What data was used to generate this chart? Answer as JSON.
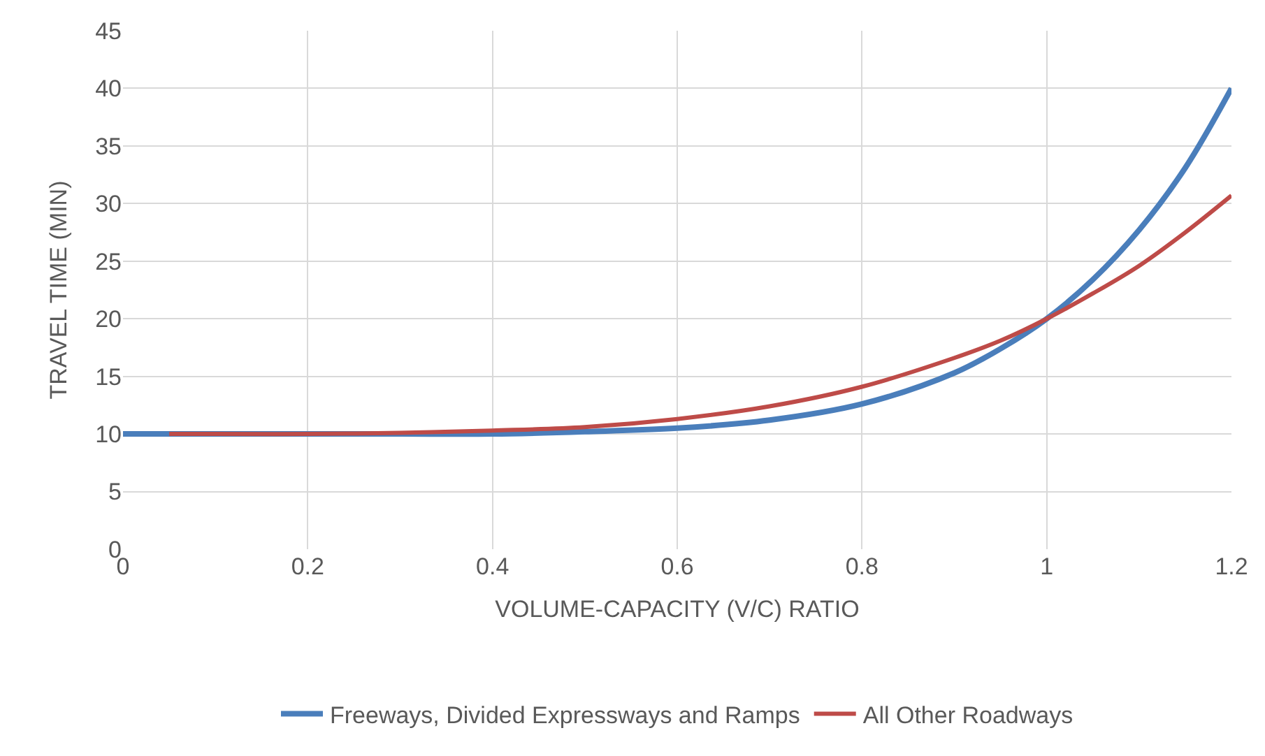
{
  "chart_data": {
    "type": "line",
    "xlabel": "VOLUME-CAPACITY (V/C) RATIO",
    "ylabel": "TRAVEL TIME (MIN)",
    "series": [
      {
        "name": "Freeways, Divided Expressways and Ramps",
        "color": "#4a7ebb",
        "x": [
          0,
          0.1,
          0.2,
          0.3,
          0.4,
          0.5,
          0.6,
          0.7,
          0.8,
          0.9,
          0.95,
          1.0,
          1.05,
          1.1,
          1.15,
          1.2
        ],
        "values": [
          10,
          10,
          10,
          10,
          10,
          10.2,
          10.5,
          11.2,
          12.6,
          15.3,
          17.4,
          20,
          23.4,
          27.7,
          33.1,
          40
        ]
      },
      {
        "name": "All Other Roadways",
        "color": "#be4b48",
        "x": [
          0.05,
          0.1,
          0.2,
          0.3,
          0.4,
          0.5,
          0.6,
          0.7,
          0.8,
          0.9,
          0.95,
          1.0,
          1.05,
          1.1,
          1.15,
          1.2
        ],
        "values": [
          10,
          10,
          10,
          10.1,
          10.3,
          10.6,
          11.3,
          12.4,
          14.1,
          16.6,
          18.1,
          20,
          22.2,
          24.6,
          27.5,
          30.7
        ]
      }
    ],
    "xlim": [
      0,
      1.2
    ],
    "xticks": [
      0,
      0.2,
      0.4,
      0.6,
      0.8,
      1,
      1.2
    ],
    "ylim": [
      0,
      45
    ],
    "yticks": [
      0,
      5,
      10,
      15,
      20,
      25,
      30,
      35,
      40,
      45
    ],
    "grid": true,
    "legend": "bottom",
    "marker": "none",
    "line_style": "solid"
  }
}
